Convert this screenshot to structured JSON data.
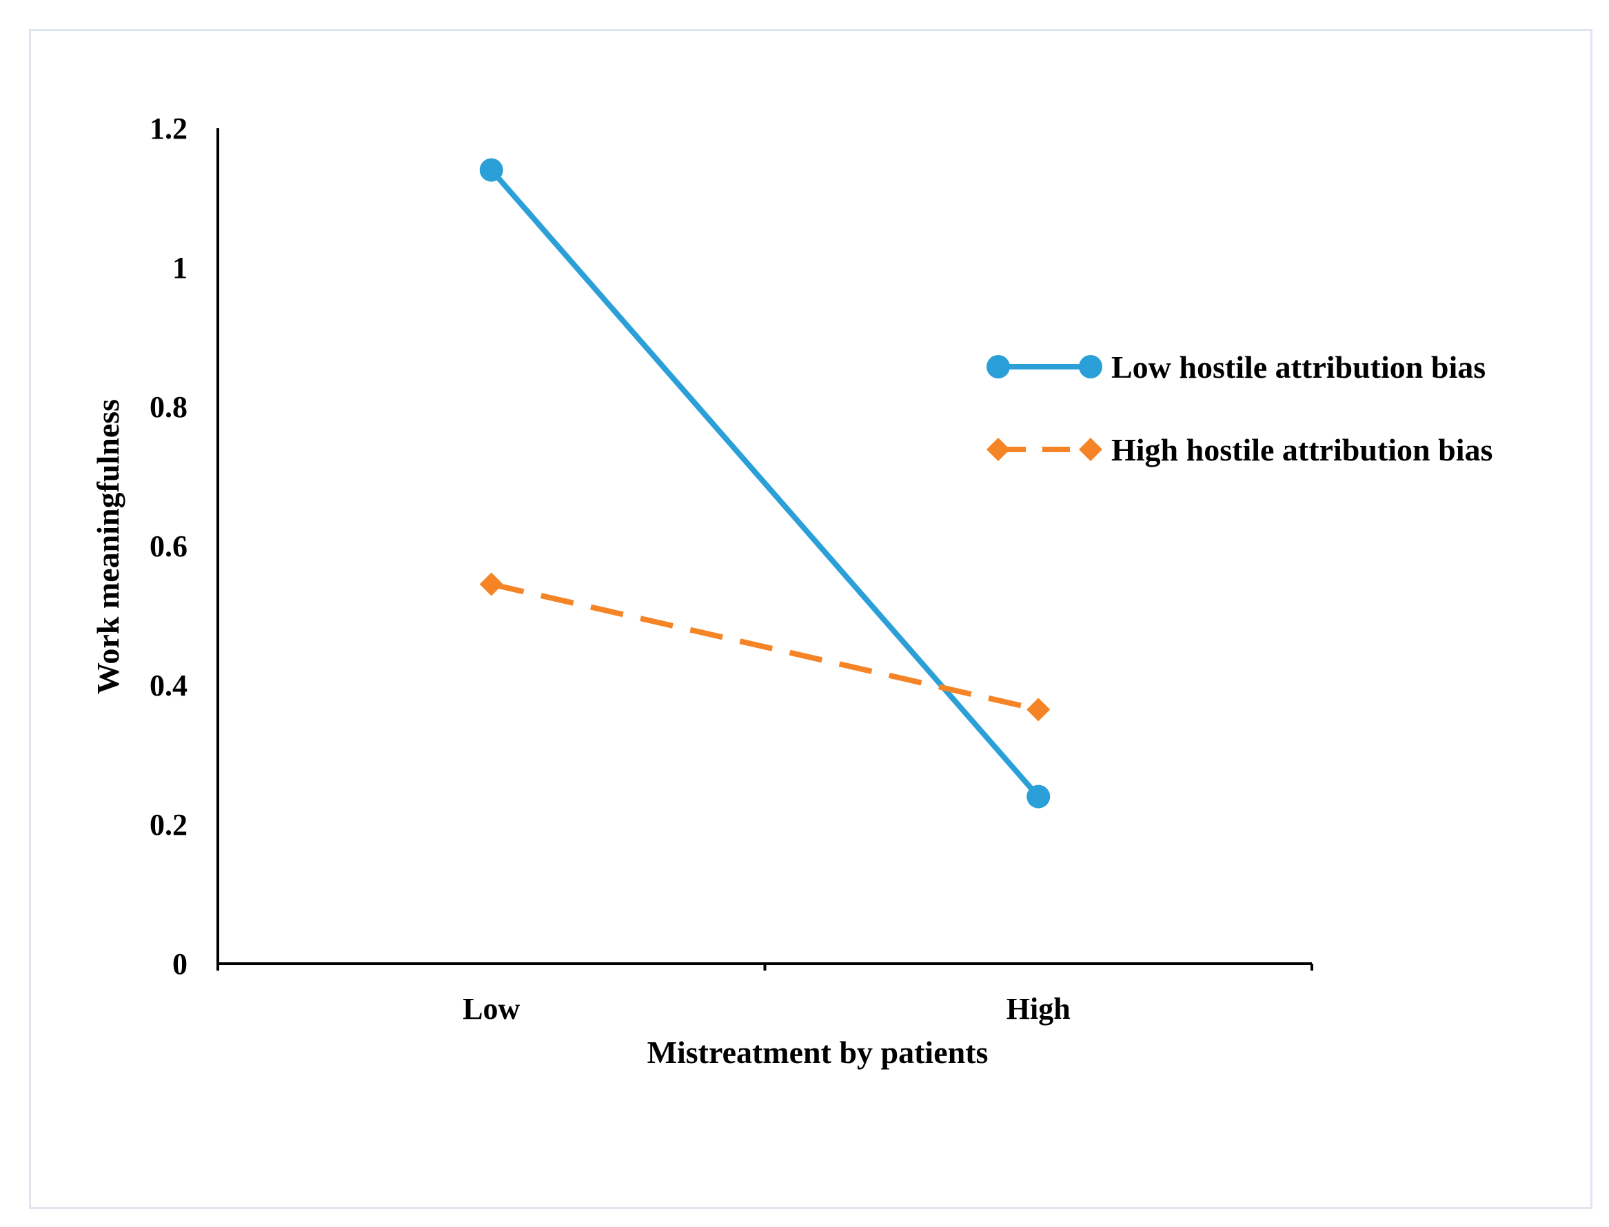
{
  "chart_data": {
    "type": "line",
    "title": "",
    "xlabel": "Mistreatment by patients",
    "ylabel": "Work meaningfulness",
    "categories": [
      "Low",
      "High"
    ],
    "ylim": [
      0,
      1.2
    ],
    "yticks": [
      "0",
      "0.2",
      "0.4",
      "0.6",
      "0.8",
      "1",
      "1.2"
    ],
    "grid": false,
    "legend_position": "right",
    "series": [
      {
        "name": "Low hostile attribution bias",
        "values": [
          1.14,
          0.24
        ],
        "color": "#2a9fd8",
        "style": "solid",
        "marker": "circle"
      },
      {
        "name": "High hostile attribution bias",
        "values": [
          0.545,
          0.365
        ],
        "color": "#f58427",
        "style": "dashed",
        "marker": "diamond"
      }
    ]
  }
}
